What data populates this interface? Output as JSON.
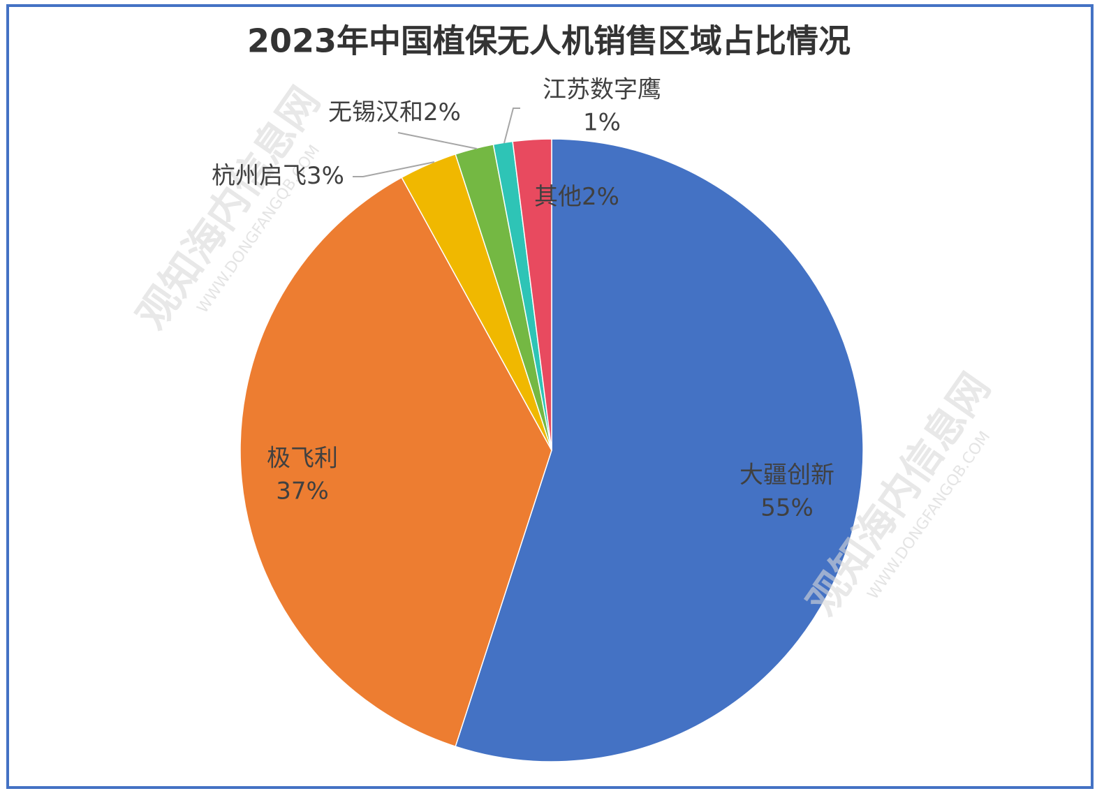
{
  "chart_data": {
    "type": "pie",
    "title": "2023年中国植保无人机销售区域占比情况",
    "categories": [
      "大疆创新",
      "极飞利",
      "杭州启飞",
      "无锡汉和",
      "江苏数字鹰",
      "其他"
    ],
    "values": [
      55,
      37,
      3,
      2,
      1,
      2
    ],
    "value_labels": [
      "55%",
      "37%",
      "3%",
      "2%",
      "1%",
      "2%"
    ],
    "colors": [
      "#4472c4",
      "#ed7d31",
      "#f0b800",
      "#74b843",
      "#2ec4b6",
      "#e84a5f"
    ]
  },
  "watermark": {
    "text": "观知海内信息网",
    "url": "WWW.DONGFANGQB.COM"
  }
}
